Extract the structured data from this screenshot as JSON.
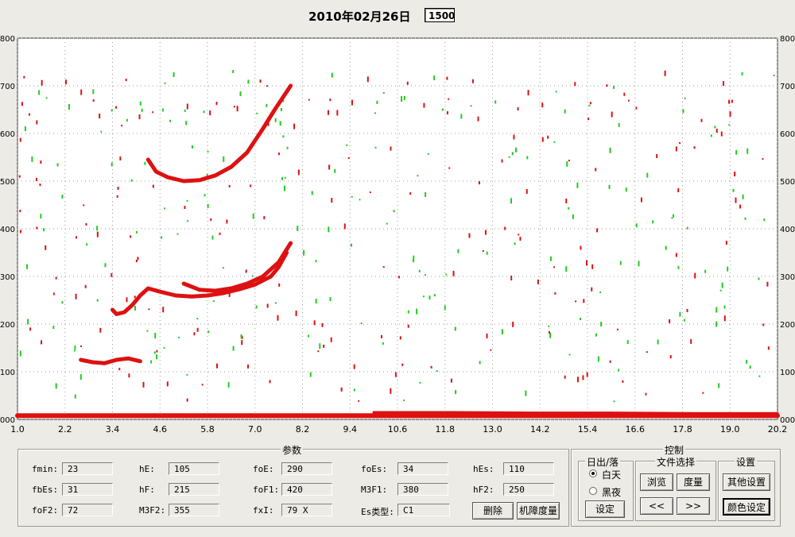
{
  "header": {
    "date": "2010年02月26日",
    "time_value": "1500"
  },
  "chart_data": {
    "type": "scatter",
    "title": "",
    "xlim": [
      1.0,
      20.2
    ],
    "ylim": [
      0,
      800
    ],
    "x_ticks": [
      "1.0",
      "2.2",
      "3.4",
      "4.6",
      "5.8",
      "7.0",
      "8.2",
      "9.4",
      "10.6",
      "11.8",
      "13.0",
      "14.2",
      "15.4",
      "16.6",
      "17.8",
      "19.0",
      "20.2"
    ],
    "x_tick_values": [
      1.0,
      2.2,
      3.4,
      4.6,
      5.8,
      7.0,
      8.2,
      9.4,
      10.6,
      11.8,
      13.0,
      14.2,
      15.4,
      16.6,
      17.8,
      19.0,
      20.2
    ],
    "y_ticks": [
      "000",
      "100",
      "200",
      "300",
      "400",
      "500",
      "600",
      "700",
      "800"
    ],
    "y_tick_values": [
      0,
      100,
      200,
      300,
      400,
      500,
      600,
      700,
      800
    ],
    "grid": true,
    "colors": {
      "trace": "#dd1111",
      "secondary": "#22cc22"
    },
    "series": [
      {
        "points": [
          [
            3.4,
            230
          ],
          [
            3.5,
            221
          ],
          [
            3.7,
            225
          ],
          [
            3.9,
            240
          ],
          [
            4.1,
            260
          ],
          [
            4.3,
            275
          ],
          [
            4.6,
            268
          ],
          [
            5.0,
            260
          ],
          [
            5.4,
            258
          ],
          [
            5.8,
            260
          ],
          [
            6.2,
            265
          ],
          [
            6.6,
            273
          ],
          [
            7.0,
            283
          ],
          [
            7.4,
            300
          ],
          [
            7.6,
            320
          ],
          [
            7.8,
            350
          ]
        ]
      },
      {
        "points": [
          [
            5.2,
            285
          ],
          [
            5.6,
            272
          ],
          [
            6.0,
            270
          ],
          [
            6.4,
            275
          ],
          [
            6.8,
            285
          ],
          [
            7.2,
            300
          ],
          [
            7.6,
            330
          ],
          [
            7.9,
            370
          ]
        ]
      },
      {
        "points": [
          [
            4.3,
            545
          ],
          [
            4.5,
            520
          ],
          [
            4.8,
            508
          ],
          [
            5.2,
            500
          ],
          [
            5.6,
            502
          ],
          [
            6.0,
            512
          ],
          [
            6.4,
            530
          ],
          [
            6.8,
            560
          ],
          [
            7.2,
            610
          ],
          [
            7.5,
            650
          ],
          [
            7.9,
            700
          ]
        ]
      },
      {
        "points": [
          [
            2.6,
            125
          ],
          [
            2.9,
            120
          ],
          [
            3.2,
            118
          ],
          [
            3.5,
            125
          ],
          [
            3.8,
            128
          ],
          [
            4.1,
            122
          ]
        ]
      },
      {
        "points": [
          [
            1.0,
            8
          ],
          [
            5.0,
            8
          ],
          [
            10.0,
            8
          ],
          [
            15.0,
            8
          ],
          [
            20.2,
            8
          ]
        ]
      },
      {
        "points": [
          [
            10.0,
            15
          ],
          [
            12.0,
            15
          ],
          [
            14.0,
            14
          ],
          [
            16.0,
            14
          ],
          [
            18.0,
            13
          ],
          [
            20.2,
            13
          ]
        ]
      }
    ]
  },
  "params": {
    "title": "参数",
    "rows": [
      [
        {
          "label": "fmin:",
          "value": "23"
        },
        {
          "label": "hE:",
          "value": "105"
        },
        {
          "label": "foE:",
          "value": "290"
        },
        {
          "label": "foEs:",
          "value": "34"
        },
        {
          "label": "hEs:",
          "value": "110"
        }
      ],
      [
        {
          "label": "fbEs:",
          "value": "31"
        },
        {
          "label": "hF:",
          "value": "215"
        },
        {
          "label": "foF1:",
          "value": "420"
        },
        {
          "label": "M3F1:",
          "value": "380"
        },
        {
          "label": "hF2:",
          "value": "250"
        }
      ],
      [
        {
          "label": "foF2:",
          "value": "72"
        },
        {
          "label": "M3F2:",
          "value": "355"
        },
        {
          "label": "fxI:",
          "value": "79 X"
        },
        {
          "label": "Es类型:",
          "value": "C1"
        }
      ]
    ],
    "delete_button": "删除",
    "auto_scale_button": "机障度量"
  },
  "control": {
    "title": "控制",
    "sunrise": {
      "title": "日出/落",
      "day": "白天",
      "night": "黑夜",
      "set_button": "设定",
      "selected": "day"
    },
    "file": {
      "title": "文件选择",
      "browse": "浏览",
      "scale": "度量",
      "prev": "<<",
      "next": ">>"
    },
    "settings": {
      "title": "设置",
      "other": "其他设置",
      "color": "颜色设定"
    }
  }
}
